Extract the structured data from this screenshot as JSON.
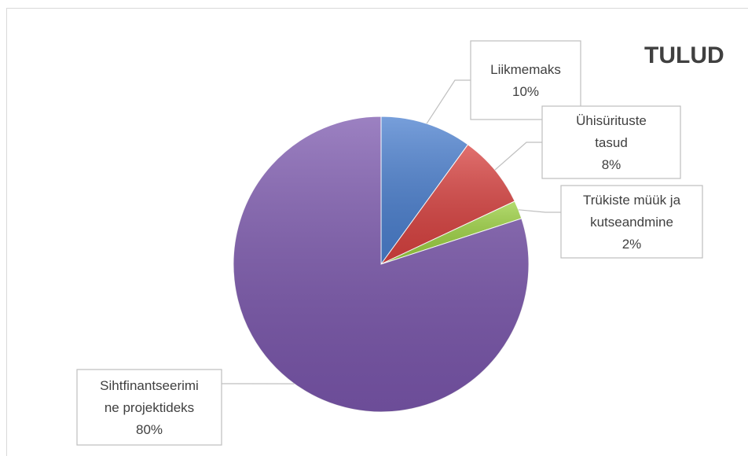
{
  "chart_data": {
    "type": "pie",
    "title": "TULUD",
    "categories": [
      "Liikmemaks",
      "Ühisürituste tasud",
      "Trükiste müük ja kutseandmine",
      "Sihtfinantseerimine projektideks"
    ],
    "values": [
      10,
      8,
      2,
      80
    ],
    "unit": "%",
    "colors": [
      "#4a7fcf",
      "#d8413f",
      "#9bd040",
      "#7b57ad"
    ],
    "data_labels": [
      {
        "lines": [
          "Liikmemaks",
          "10%"
        ]
      },
      {
        "lines": [
          "Ühisürituste",
          "tasud",
          "8%"
        ]
      },
      {
        "lines": [
          "Trükiste müük ja",
          "kutseandmine",
          "2%"
        ]
      },
      {
        "lines": [
          "Sihtfinantseerimi",
          "ne projektideks",
          "80%"
        ]
      }
    ],
    "legend": "none"
  }
}
